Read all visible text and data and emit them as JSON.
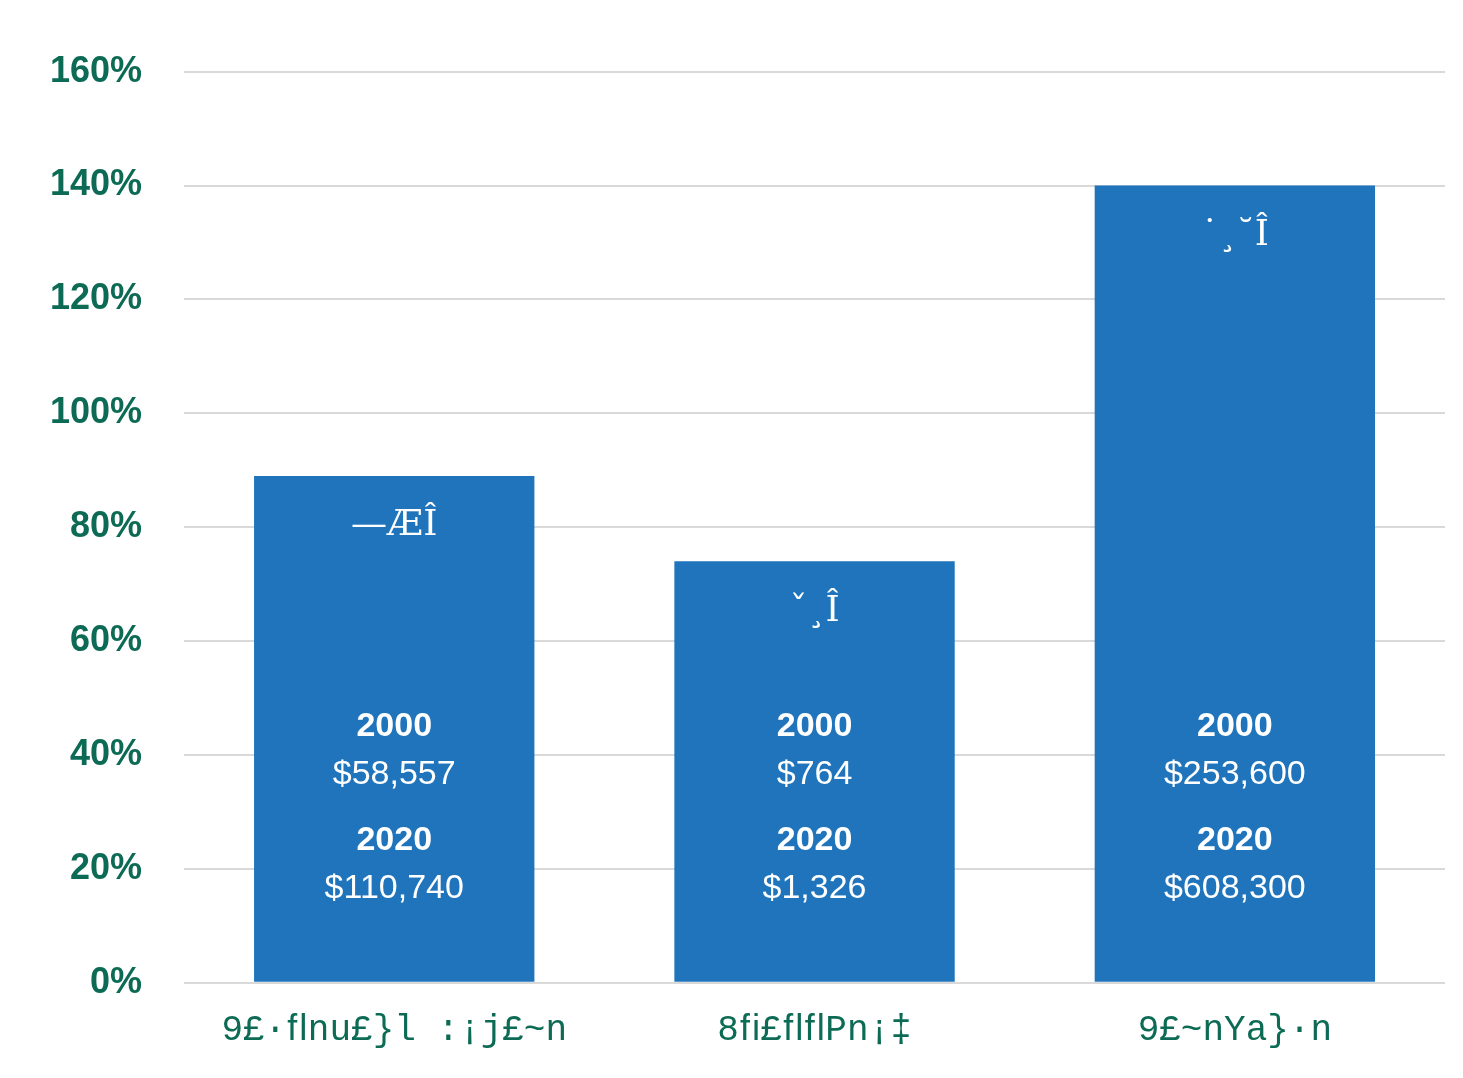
{
  "chart_data": {
    "type": "bar",
    "categories": [
      "9£·ﬂnu£}l :¡j£~n",
      "8ﬁ£ﬂﬂPn¡‡",
      "9£~nYa}·n"
    ],
    "values": [
      89,
      74,
      140
    ],
    "value_labels": [
      "—ÆÎ",
      "ˇ¸Î",
      "˙¸˘Î"
    ],
    "color": "#1f74bc",
    "ylim": [
      0,
      160
    ],
    "yticks": [
      {
        "value": 0,
        "label": "0%"
      },
      {
        "value": 20,
        "label": "20%"
      },
      {
        "value": 40,
        "label": "40%"
      },
      {
        "value": 60,
        "label": "60%"
      },
      {
        "value": 80,
        "label": "80%"
      },
      {
        "value": 100,
        "label": "100%"
      },
      {
        "value": 120,
        "label": "120%"
      },
      {
        "value": 140,
        "label": "140%"
      },
      {
        "value": 160,
        "label": "160%"
      }
    ],
    "grid": "y",
    "legend": false,
    "annotations": [
      "2000\n$58,557",
      "2020\n$110,740",
      "2000\n$764",
      "2020\n$1,326",
      "2000\n$253,600",
      "2020\n$608,300"
    ]
  }
}
